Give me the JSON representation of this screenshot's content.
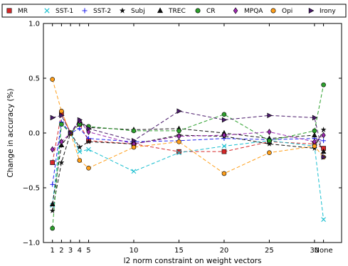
{
  "chart_data": {
    "type": "line",
    "xlabel": "l2 norm constraint on weight vectors",
    "ylabel": "Change in accuracy (%)",
    "x_positions": [
      1,
      2,
      3,
      4,
      5,
      10,
      15,
      20,
      25,
      30,
      31
    ],
    "x_tick_values": [
      1,
      2,
      3,
      4,
      5,
      10,
      15,
      20,
      25,
      30,
      31
    ],
    "x_tick_labels": [
      "1",
      "2",
      "3",
      "4",
      "5",
      "10",
      "15",
      "20",
      "25",
      "30",
      "None"
    ],
    "xlim": [
      0,
      33
    ],
    "ylim": [
      -1.0,
      1.0
    ],
    "y_ticks": [
      -1.0,
      -0.5,
      0.0,
      0.5,
      1.0
    ],
    "y_tick_labels": [
      "−1.0",
      "−0.5",
      "0.0",
      "0.5",
      "1.0"
    ],
    "grid": false,
    "legend_position": "top",
    "series": [
      {
        "name": "MR",
        "color": "#d62728",
        "marker": "square",
        "values": [
          -0.27,
          0.18,
          0.0,
          0.08,
          -0.07,
          -0.1,
          -0.17,
          -0.17,
          -0.08,
          -0.1,
          -0.14
        ]
      },
      {
        "name": "SST-1",
        "color": "#17becf",
        "marker": "x",
        "values": [
          -0.66,
          0.08,
          0.0,
          -0.17,
          -0.15,
          -0.35,
          -0.18,
          -0.12,
          -0.07,
          -0.12,
          -0.79
        ]
      },
      {
        "name": "SST-2",
        "color": "#2222ee",
        "marker": "plus",
        "values": [
          -0.47,
          0.1,
          0.0,
          0.04,
          -0.05,
          -0.08,
          -0.07,
          -0.05,
          -0.06,
          -0.05,
          -0.07
        ]
      },
      {
        "name": "Subj",
        "color": "#111111",
        "marker": "star",
        "values": [
          -0.71,
          -0.27,
          0.0,
          -0.13,
          -0.08,
          -0.1,
          -0.02,
          -0.03,
          -0.1,
          -0.14,
          0.03
        ]
      },
      {
        "name": "TREC",
        "color": "#111111",
        "marker": "triangle",
        "values": [
          -0.65,
          -0.11,
          0.0,
          0.1,
          0.05,
          0.03,
          0.04,
          0.0,
          -0.05,
          -0.02,
          -0.17
        ]
      },
      {
        "name": "CR",
        "color": "#2ca02c",
        "marker": "circle",
        "values": [
          -0.87,
          0.08,
          0.0,
          0.08,
          0.06,
          0.02,
          0.02,
          0.17,
          -0.07,
          0.02,
          0.44
        ]
      },
      {
        "name": "MPQA",
        "color": "#9c27b0",
        "marker": "diamond",
        "values": [
          -0.15,
          -0.08,
          0.0,
          0.11,
          0.01,
          -0.1,
          -0.03,
          -0.02,
          0.01,
          -0.08,
          -0.02
        ]
      },
      {
        "name": "Opi",
        "color": "#ff9f1a",
        "marker": "circle",
        "values": [
          0.49,
          0.2,
          0.0,
          -0.25,
          -0.32,
          -0.13,
          -0.08,
          -0.37,
          -0.18,
          -0.12,
          -0.22
        ]
      },
      {
        "name": "Irony",
        "color": "#4a1a6b",
        "marker": "triangle-right",
        "values": [
          0.14,
          0.16,
          0.0,
          0.12,
          0.04,
          -0.07,
          0.2,
          0.12,
          0.16,
          0.14,
          -0.22
        ]
      }
    ]
  }
}
